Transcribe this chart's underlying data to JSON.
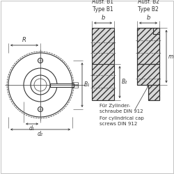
{
  "bg_color": "#ffffff",
  "line_color": "#333333",
  "title_b1": "Ausf. B1\nType B1",
  "title_b2": "Ausf. B2\nType B2",
  "label_R": "R",
  "label_b1": "b",
  "label_b2": "b",
  "label_B1": "B₁",
  "label_B2": "B₂",
  "label_d1": "d₁",
  "label_d2": "d₂",
  "label_m": "m",
  "footnote_de": "Für Zylinder-\nschraube DIN 912",
  "footnote_en": "For cylindrical cap\nscrews DIN 912"
}
